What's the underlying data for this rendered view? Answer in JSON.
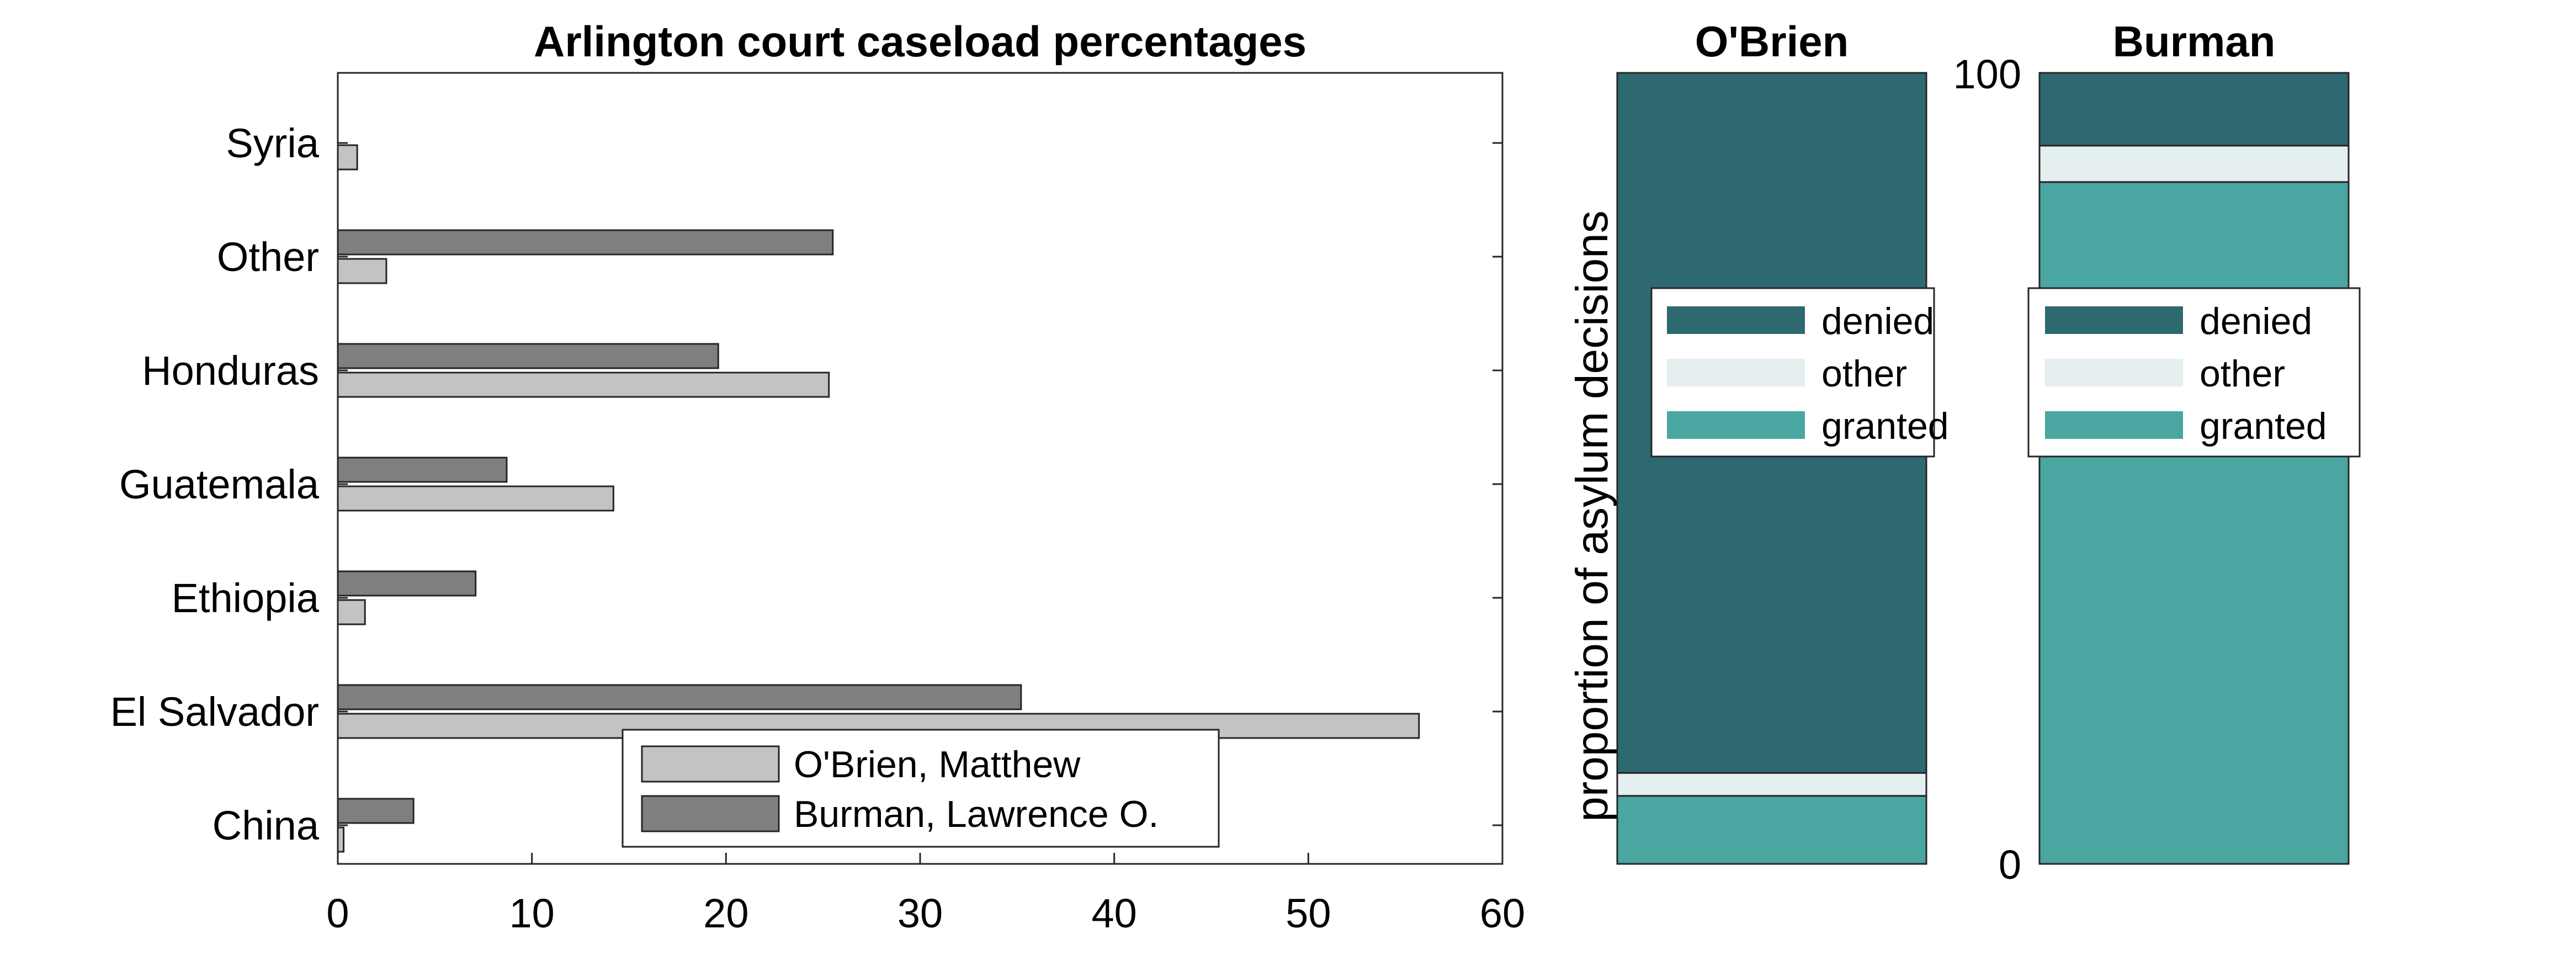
{
  "colors": {
    "obrien": "#c3c3c3",
    "burman": "#7f7f7f",
    "denied": "#2e6870",
    "other": "#e5eff0",
    "granted": "#4aa6a0"
  },
  "chart_data": [
    {
      "type": "bar",
      "orientation": "horizontal",
      "title": "Arlington court caseload percentages",
      "categories": [
        "China",
        "El Salvador",
        "Ethiopia",
        "Guatemala",
        "Honduras",
        "Other",
        "Syria"
      ],
      "series": [
        {
          "name": "O'Brien, Matthew",
          "values": [
            0.3,
            55.7,
            1.4,
            14.2,
            25.3,
            2.5,
            1.0
          ]
        },
        {
          "name": "Burman, Lawrence O.",
          "values": [
            3.9,
            35.2,
            7.1,
            8.7,
            19.6,
            25.5,
            0.0
          ]
        }
      ],
      "xlim": [
        0,
        60
      ],
      "xticks": [
        0,
        10,
        20,
        30,
        40,
        50,
        60
      ],
      "xlabel": "",
      "ylabel": "",
      "legend_position": "bottom-center",
      "grid": false
    },
    {
      "type": "bar",
      "stacked": true,
      "ylabel": "proportion of asylum decisions",
      "ylim": [
        0,
        100
      ],
      "yticks": [
        0,
        100
      ],
      "panels": [
        {
          "title": "O'Brien",
          "segments": [
            {
              "name": "granted",
              "value": 8.6
            },
            {
              "name": "other",
              "value": 2.9
            },
            {
              "name": "denied",
              "value": 88.5
            }
          ]
        },
        {
          "title": "Burman",
          "segments": [
            {
              "name": "granted",
              "value": 86.2
            },
            {
              "name": "other",
              "value": 4.6
            },
            {
              "name": "denied",
              "value": 9.2
            }
          ]
        }
      ],
      "legend": [
        "denied",
        "other",
        "granted"
      ],
      "legend_position": "middle"
    }
  ]
}
